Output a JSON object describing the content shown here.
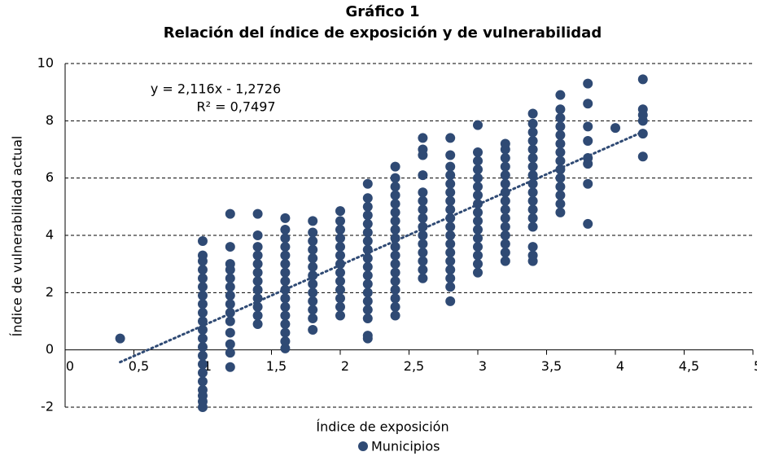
{
  "chart_data": {
    "type": "scatter",
    "title": "Gráfico 1",
    "subtitle": "Relación del índice de exposición y de vulnerabilidad",
    "x_label": "Índice de exposición",
    "y_label": "Índice de vulnerabilidad actual",
    "annotations": [
      "y = 2,116x - 1,2726",
      "R² = 0,7497"
    ],
    "trendline": {
      "slope": 2.116,
      "intercept": -1.2726
    },
    "xlim": [
      0,
      5
    ],
    "ylim": [
      -2,
      10
    ],
    "xticks": [
      0,
      {
        "value": 0.5,
        "label": "0,5"
      },
      1,
      {
        "value": 1.5,
        "label": "1,5"
      },
      2,
      {
        "value": 2.5,
        "label": "2,5"
      },
      3,
      {
        "value": 3.5,
        "label": "3,5"
      },
      4,
      {
        "value": 4.5,
        "label": "4,5"
      },
      5
    ],
    "yticks": [
      -2,
      0,
      2,
      4,
      6,
      8,
      10
    ],
    "grid": true,
    "legend": "bottom",
    "series": [
      {
        "name": "Municipios",
        "color": "#2f4a74",
        "x": [
          0.4,
          1,
          1,
          1,
          1,
          1,
          1,
          1,
          1,
          1,
          1,
          1,
          1,
          1,
          1,
          1,
          1,
          1,
          1,
          1,
          1,
          1,
          1.2,
          1.2,
          1.2,
          1.2,
          1.2,
          1.2,
          1.2,
          1.2,
          1.2,
          1.2,
          1.2,
          1.2,
          1.2,
          1.2,
          1.4,
          1.4,
          1.4,
          1.4,
          1.4,
          1.4,
          1.4,
          1.4,
          1.4,
          1.4,
          1.4,
          1.4,
          1.6,
          1.6,
          1.6,
          1.6,
          1.6,
          1.6,
          1.6,
          1.6,
          1.6,
          1.6,
          1.6,
          1.6,
          1.6,
          1.6,
          1.6,
          1.6,
          1.8,
          1.8,
          1.8,
          1.8,
          1.8,
          1.8,
          1.8,
          1.8,
          1.8,
          1.8,
          1.8,
          1.8,
          1.8,
          2,
          2,
          2,
          2,
          2,
          2,
          2,
          2,
          2,
          2,
          2,
          2,
          2,
          2.2,
          2.2,
          2.2,
          2.2,
          2.2,
          2.2,
          2.2,
          2.2,
          2.2,
          2.2,
          2.2,
          2.2,
          2.2,
          2.2,
          2.2,
          2.2,
          2.2,
          2.2,
          2.4,
          2.4,
          2.4,
          2.4,
          2.4,
          2.4,
          2.4,
          2.4,
          2.4,
          2.4,
          2.4,
          2.4,
          2.4,
          2.4,
          2.4,
          2.4,
          2.4,
          2.4,
          2.6,
          2.6,
          2.6,
          2.6,
          2.6,
          2.6,
          2.6,
          2.6,
          2.6,
          2.6,
          2.6,
          2.6,
          2.6,
          2.6,
          2.6,
          2.8,
          2.8,
          2.8,
          2.8,
          2.8,
          2.8,
          2.8,
          2.8,
          2.8,
          2.8,
          2.8,
          2.8,
          2.8,
          2.8,
          2.8,
          2.8,
          2.8,
          2.8,
          3,
          3,
          3,
          3,
          3,
          3,
          3,
          3,
          3,
          3,
          3,
          3,
          3,
          3,
          3,
          3,
          3.2,
          3.2,
          3.2,
          3.2,
          3.2,
          3.2,
          3.2,
          3.2,
          3.2,
          3.2,
          3.2,
          3.2,
          3.2,
          3.2,
          3.2,
          3.4,
          3.4,
          3.4,
          3.4,
          3.4,
          3.4,
          3.4,
          3.4,
          3.4,
          3.4,
          3.4,
          3.4,
          3.4,
          3.4,
          3.4,
          3.4,
          3.4,
          3.6,
          3.6,
          3.6,
          3.6,
          3.6,
          3.6,
          3.6,
          3.6,
          3.6,
          3.6,
          3.6,
          3.6,
          3.6,
          3.6,
          3.8,
          3.8,
          3.8,
          3.8,
          3.8,
          3.8,
          3.8,
          3.8,
          4,
          4.2,
          4.2,
          4.2,
          4.2,
          4.2,
          4.2
        ],
        "values": [
          0.4,
          -2.0,
          -1.8,
          -1.6,
          -1.4,
          -1.1,
          -0.8,
          -0.5,
          -0.2,
          0.1,
          0.4,
          0.7,
          1.0,
          1.3,
          1.6,
          1.9,
          2.2,
          2.5,
          2.8,
          3.1,
          3.3,
          3.8,
          -0.6,
          -0.1,
          0.2,
          0.6,
          1.0,
          1.3,
          1.6,
          1.9,
          2.2,
          2.5,
          2.8,
          3.0,
          3.6,
          4.75,
          0.9,
          1.2,
          1.5,
          1.8,
          2.1,
          2.4,
          2.7,
          3.0,
          3.3,
          3.6,
          4.0,
          4.75,
          0.05,
          0.3,
          0.6,
          0.9,
          1.2,
          1.5,
          1.8,
          2.1,
          2.4,
          2.7,
          3.0,
          3.3,
          3.6,
          3.9,
          4.2,
          4.6,
          0.7,
          1.1,
          1.4,
          1.7,
          2.0,
          2.3,
          2.6,
          2.9,
          3.2,
          3.5,
          3.8,
          4.1,
          4.5,
          1.2,
          1.5,
          1.8,
          2.1,
          2.4,
          2.7,
          3.0,
          3.3,
          3.6,
          3.9,
          4.2,
          4.5,
          4.85,
          0.4,
          0.5,
          1.1,
          1.4,
          1.7,
          2.0,
          2.3,
          2.6,
          2.9,
          3.2,
          3.5,
          3.8,
          4.1,
          4.4,
          4.7,
          5.0,
          5.3,
          5.8,
          1.2,
          1.5,
          1.8,
          2.1,
          2.4,
          2.7,
          3.0,
          3.3,
          3.6,
          3.9,
          4.2,
          4.5,
          4.8,
          5.1,
          5.4,
          5.7,
          6.0,
          6.4,
          2.5,
          2.8,
          3.1,
          3.4,
          3.7,
          4.0,
          4.3,
          4.6,
          4.9,
          5.2,
          5.5,
          6.1,
          6.8,
          7.0,
          7.4,
          1.7,
          2.2,
          2.5,
          2.8,
          3.1,
          3.4,
          3.7,
          4.0,
          4.3,
          4.6,
          4.9,
          5.2,
          5.5,
          5.8,
          6.1,
          6.4,
          6.8,
          7.4,
          2.7,
          3.0,
          3.3,
          3.6,
          3.9,
          4.2,
          4.5,
          4.8,
          5.1,
          5.4,
          5.7,
          6.0,
          6.3,
          6.6,
          6.9,
          7.85,
          3.1,
          3.4,
          3.7,
          4.0,
          4.3,
          4.6,
          4.9,
          5.2,
          5.5,
          5.8,
          6.1,
          6.4,
          6.7,
          7.0,
          7.2,
          3.1,
          3.3,
          3.6,
          4.3,
          4.6,
          4.9,
          5.2,
          5.5,
          5.8,
          6.1,
          6.4,
          6.7,
          7.0,
          7.3,
          7.6,
          7.9,
          8.25,
          4.8,
          5.1,
          5.4,
          5.7,
          6.0,
          6.3,
          6.6,
          6.9,
          7.2,
          7.5,
          7.8,
          8.1,
          8.4,
          8.9,
          4.4,
          5.8,
          6.5,
          6.7,
          7.3,
          7.8,
          8.6,
          9.3,
          7.75,
          6.75,
          7.55,
          8.0,
          8.2,
          8.4,
          9.45
        ]
      }
    ]
  }
}
